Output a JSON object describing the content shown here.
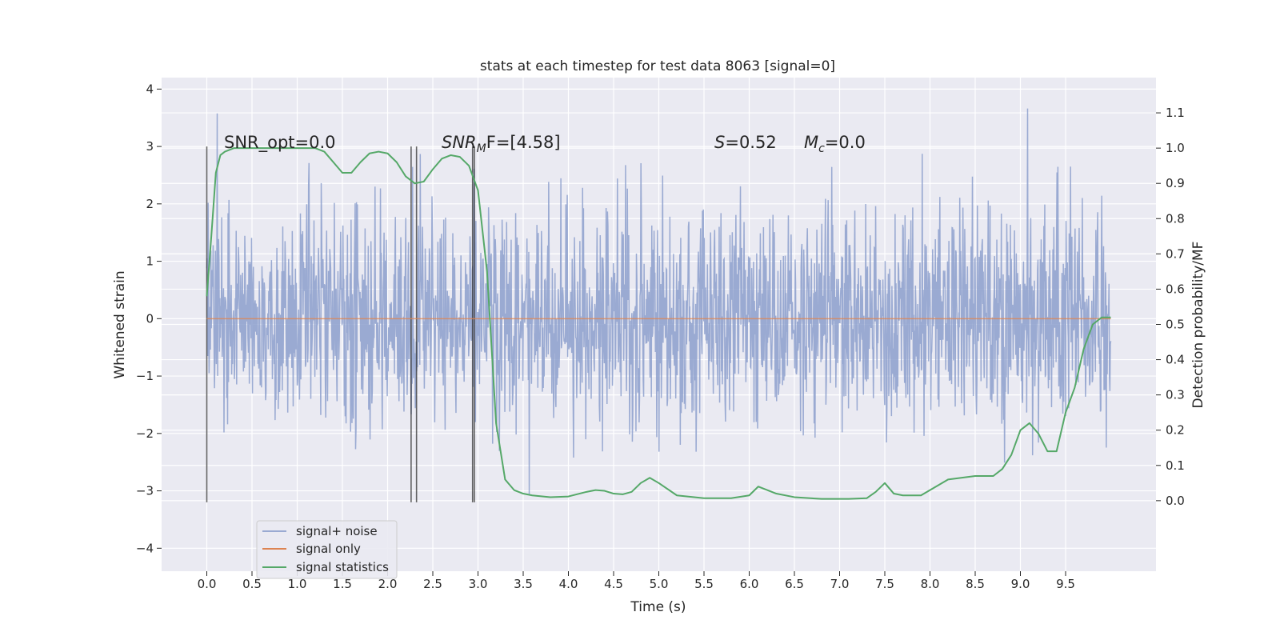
{
  "chart_data": {
    "type": "line",
    "title": "stats at each timestep for test data 8063 [signal=0]",
    "xlabel": "Time (s)",
    "ylabel": "Whitened strain",
    "ylabel_right": "Detection probability/MF",
    "xlim": [
      -0.5,
      10.5
    ],
    "ylim": [
      -4.4,
      4.2
    ],
    "ylim_right": [
      -0.2,
      1.2
    ],
    "grid": true,
    "background_color": "#eaeaf2",
    "x_ticks": [
      "0.0",
      "0.5",
      "1.0",
      "1.5",
      "2.0",
      "2.5",
      "3.0",
      "3.5",
      "4.0",
      "4.5",
      "5.0",
      "5.5",
      "6.0",
      "6.5",
      "7.0",
      "7.5",
      "8.0",
      "8.5",
      "9.0",
      "9.5"
    ],
    "y_ticks": [
      "−4",
      "−3",
      "−2",
      "−1",
      "0",
      "1",
      "2",
      "3",
      "4"
    ],
    "y_ticks_right": [
      "0.0",
      "0.1",
      "0.2",
      "0.3",
      "0.4",
      "0.5",
      "0.6",
      "0.7",
      "0.8",
      "0.9",
      "1.0",
      "1.1"
    ],
    "annotations": {
      "snr_opt": "SNR_opt=0.0",
      "snr_mf_base": "SNR",
      "snr_mf_sub": "M",
      "snr_mf_rest": "F=[4.58]",
      "s_stat_var": "S",
      "s_stat_val": "=0.52",
      "mc_var": "M",
      "mc_sub": "c",
      "mc_val": "=0.0"
    },
    "vertical_markers": [
      0.0,
      2.26,
      2.32,
      2.94,
      2.96
    ],
    "legend": {
      "position": "lower-left",
      "entries": [
        "signal+ noise",
        "signal only",
        "signal statistics"
      ]
    },
    "series": [
      {
        "name": "signal+ noise",
        "color": "#8c9fcc",
        "axis": "left",
        "x_range": [
          0.0,
          10.0
        ],
        "sample_count": 2000,
        "envelope_typical": [
          -1.9,
          2.0
        ],
        "extremes": [
          -4.0,
          3.85
        ]
      },
      {
        "name": "signal only",
        "color": "#dd8452",
        "axis": "left",
        "x": [
          0.0,
          10.0
        ],
        "y": [
          0.0,
          0.0
        ]
      },
      {
        "name": "signal statistics",
        "color": "#55a868",
        "axis": "right",
        "x": [
          0.0,
          0.05,
          0.1,
          0.15,
          0.2,
          0.3,
          0.5,
          0.8,
          1.0,
          1.2,
          1.3,
          1.4,
          1.5,
          1.6,
          1.7,
          1.8,
          1.9,
          2.0,
          2.1,
          2.2,
          2.3,
          2.4,
          2.5,
          2.6,
          2.7,
          2.8,
          2.9,
          3.0,
          3.1,
          3.2,
          3.3,
          3.4,
          3.5,
          3.6,
          3.8,
          4.0,
          4.2,
          4.3,
          4.4,
          4.5,
          4.6,
          4.7,
          4.8,
          4.9,
          5.0,
          5.2,
          5.5,
          5.8,
          6.0,
          6.1,
          6.3,
          6.5,
          6.8,
          7.1,
          7.3,
          7.4,
          7.5,
          7.6,
          7.7,
          7.9,
          8.0,
          8.2,
          8.5,
          8.7,
          8.8,
          8.9,
          9.0,
          9.1,
          9.2,
          9.3,
          9.4,
          9.5,
          9.6,
          9.7,
          9.8,
          9.9,
          10.0
        ],
        "y": [
          0.58,
          0.75,
          0.93,
          0.98,
          0.99,
          1.0,
          1.0,
          1.0,
          1.0,
          1.0,
          0.99,
          0.96,
          0.93,
          0.93,
          0.96,
          0.985,
          0.99,
          0.985,
          0.96,
          0.92,
          0.9,
          0.905,
          0.94,
          0.97,
          0.98,
          0.975,
          0.95,
          0.88,
          0.65,
          0.22,
          0.06,
          0.03,
          0.02,
          0.015,
          0.01,
          0.012,
          0.025,
          0.03,
          0.028,
          0.02,
          0.018,
          0.025,
          0.05,
          0.065,
          0.05,
          0.015,
          0.007,
          0.007,
          0.015,
          0.04,
          0.02,
          0.01,
          0.005,
          0.005,
          0.007,
          0.025,
          0.05,
          0.02,
          0.015,
          0.015,
          0.03,
          0.06,
          0.07,
          0.07,
          0.09,
          0.13,
          0.2,
          0.22,
          0.19,
          0.14,
          0.14,
          0.25,
          0.32,
          0.43,
          0.5,
          0.52,
          0.52
        ]
      }
    ]
  }
}
